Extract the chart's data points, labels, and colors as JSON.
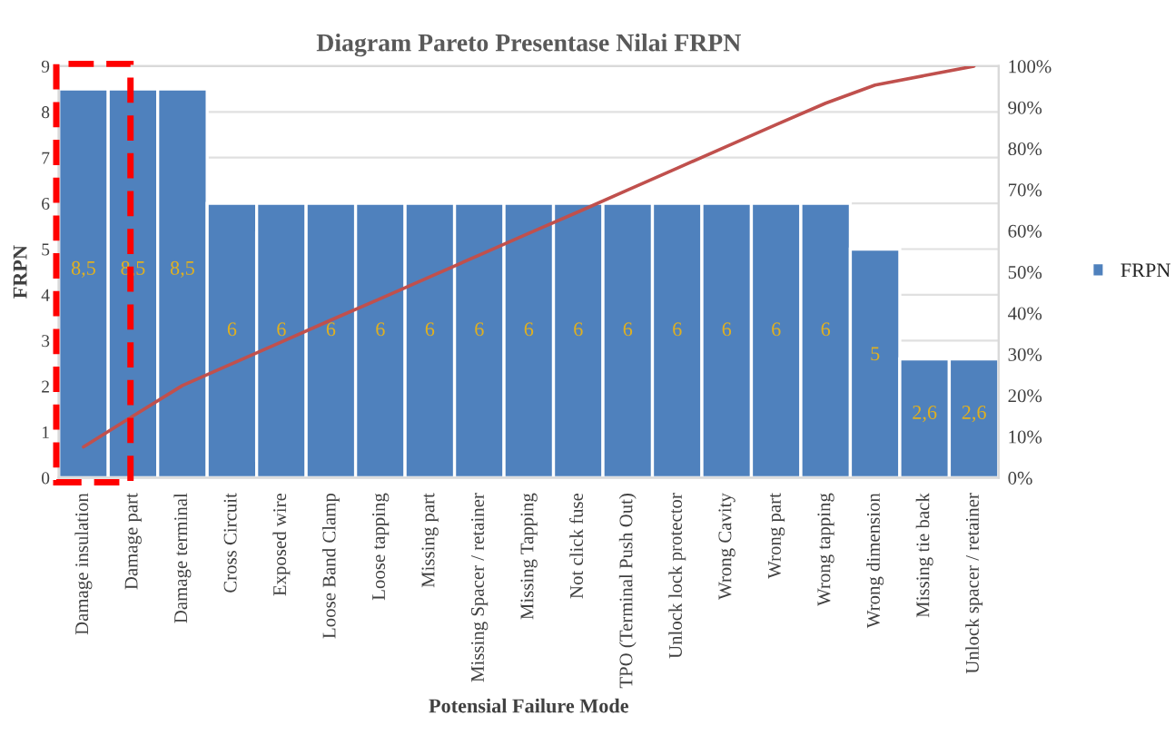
{
  "chart_data": {
    "type": "bar",
    "title": "Diagram Pareto Presentase Nilai FRPN",
    "xlabel": "Potensial Failure Mode",
    "ylabel": "FRPN",
    "categories": [
      "Damage insulation",
      "Damage part",
      "Damage terminal",
      "Cross Circuit",
      "Exposed wire",
      "Loose Band Clamp",
      "Loose tapping",
      "Missing part",
      "Missing Spacer / retainer",
      "Missing Tapping",
      "Not click fuse",
      "TPO (Terminal Push Out)",
      "Unlock lock protector",
      "Wrong Cavity",
      "Wrong part",
      "Wrong tapping",
      "Wrong dimension",
      "Missing tie back",
      "Unlock spacer / retainer"
    ],
    "series": [
      {
        "name": "FRPN",
        "color": "#4f81bd",
        "values": [
          8.5,
          8.5,
          8.5,
          6,
          6,
          6,
          6,
          6,
          6,
          6,
          6,
          6,
          6,
          6,
          6,
          6,
          5,
          2.6,
          2.6
        ],
        "value_labels": [
          "8,5",
          "8,5",
          "8,5",
          "6",
          "6",
          "6",
          "6",
          "6",
          "6",
          "6",
          "6",
          "6",
          "6",
          "6",
          "6",
          "6",
          "5",
          "2,6",
          "2,6"
        ]
      },
      {
        "type": "line",
        "axis": "y2",
        "color": "#c0504d",
        "values": [
          7.5,
          15.0,
          22.4,
          27.7,
          33.0,
          38.3,
          43.5,
          48.8,
          54.1,
          59.4,
          64.6,
          69.9,
          75.2,
          80.5,
          85.8,
          91.0,
          95.4,
          97.7,
          100
        ]
      }
    ],
    "ylim": [
      0,
      9
    ],
    "yticks": [
      0,
      1,
      2,
      3,
      4,
      5,
      6,
      7,
      8,
      9
    ],
    "y2lim": [
      0,
      100
    ],
    "y2ticks": [
      {
        "value": 0,
        "label": "0%"
      },
      {
        "value": 10,
        "label": "10%"
      },
      {
        "value": 20,
        "label": "20%"
      },
      {
        "value": 30,
        "label": "30%"
      },
      {
        "value": 40,
        "label": "40%"
      },
      {
        "value": 50,
        "label": "50%"
      },
      {
        "value": 60,
        "label": "60%"
      },
      {
        "value": 70,
        "label": "70%"
      },
      {
        "value": 80,
        "label": "80%"
      },
      {
        "value": 90,
        "label": "90%"
      },
      {
        "value": 100,
        "label": "100%"
      }
    ],
    "grid": "y",
    "legend": "right",
    "marker": "none",
    "line_style": "solid"
  }
}
